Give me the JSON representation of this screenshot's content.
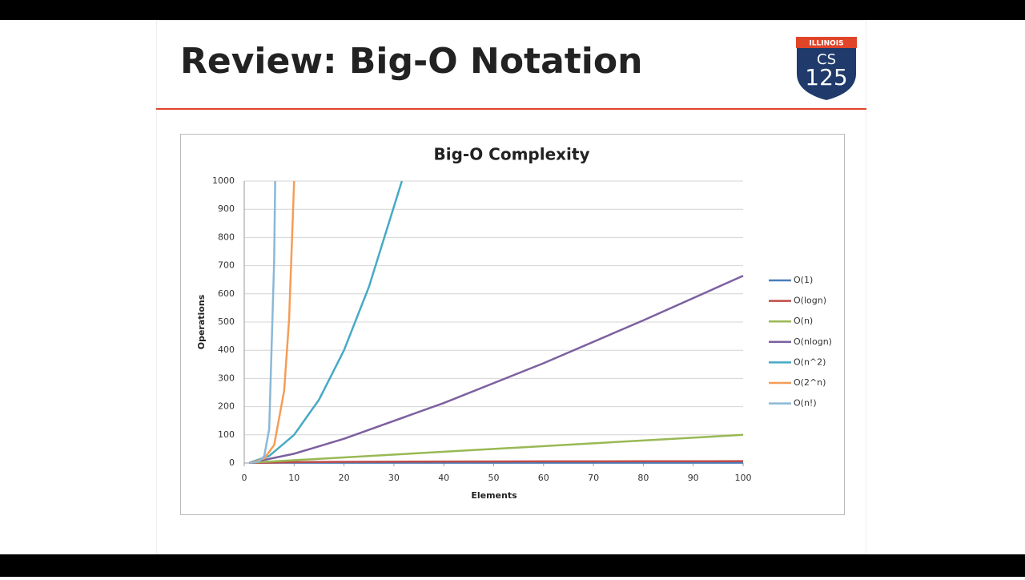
{
  "slide": {
    "title": "Review: Big-O Notation"
  },
  "logo": {
    "top": "ILLINOIS",
    "line1": "CS",
    "line2": "125"
  },
  "chart_data": {
    "type": "line",
    "title": "Big-O Complexity",
    "x_label": "Elements",
    "y_label": "Operations",
    "xlim": [
      0,
      100
    ],
    "xticks": [
      0,
      10,
      20,
      30,
      40,
      50,
      60,
      70,
      80,
      90,
      100
    ],
    "ylim": [
      0,
      1000
    ],
    "yticks": [
      0,
      100,
      200,
      300,
      400,
      500,
      600,
      700,
      800,
      900,
      1000
    ],
    "grid": true,
    "legend": "right",
    "series": [
      {
        "name": "O(1)",
        "color": "#4a7ebb",
        "x": [
          1,
          100
        ],
        "values": [
          1,
          1
        ]
      },
      {
        "name": "O(logn)",
        "color": "#be4b48",
        "x": [
          1,
          10,
          20,
          40,
          60,
          80,
          100
        ],
        "values": [
          0,
          3.3,
          4.3,
          5.3,
          5.9,
          6.3,
          6.6
        ]
      },
      {
        "name": "O(n)",
        "color": "#98b954",
        "x": [
          1,
          100
        ],
        "values": [
          1,
          100
        ]
      },
      {
        "name": "O(nlogn)",
        "color": "#7d60a0",
        "x": [
          1,
          10,
          20,
          40,
          60,
          80,
          100
        ],
        "values": [
          0,
          33,
          86,
          213,
          354,
          506,
          664
        ]
      },
      {
        "name": "O(n^2)",
        "color": "#46aac5",
        "x": [
          1,
          5,
          10,
          15,
          20,
          25,
          31.6
        ],
        "values": [
          1,
          25,
          100,
          225,
          400,
          625,
          1000
        ]
      },
      {
        "name": "O(2^n)",
        "color": "#f59d56",
        "x": [
          1,
          2,
          4,
          6,
          8,
          9,
          10
        ],
        "values": [
          2,
          4,
          16,
          64,
          256,
          512,
          1000
        ]
      },
      {
        "name": "O(n!)",
        "color": "#8bb8d8",
        "x": [
          1,
          2,
          3,
          4,
          5,
          6,
          6.2
        ],
        "values": [
          1,
          2,
          6,
          24,
          120,
          720,
          1000
        ]
      }
    ]
  }
}
